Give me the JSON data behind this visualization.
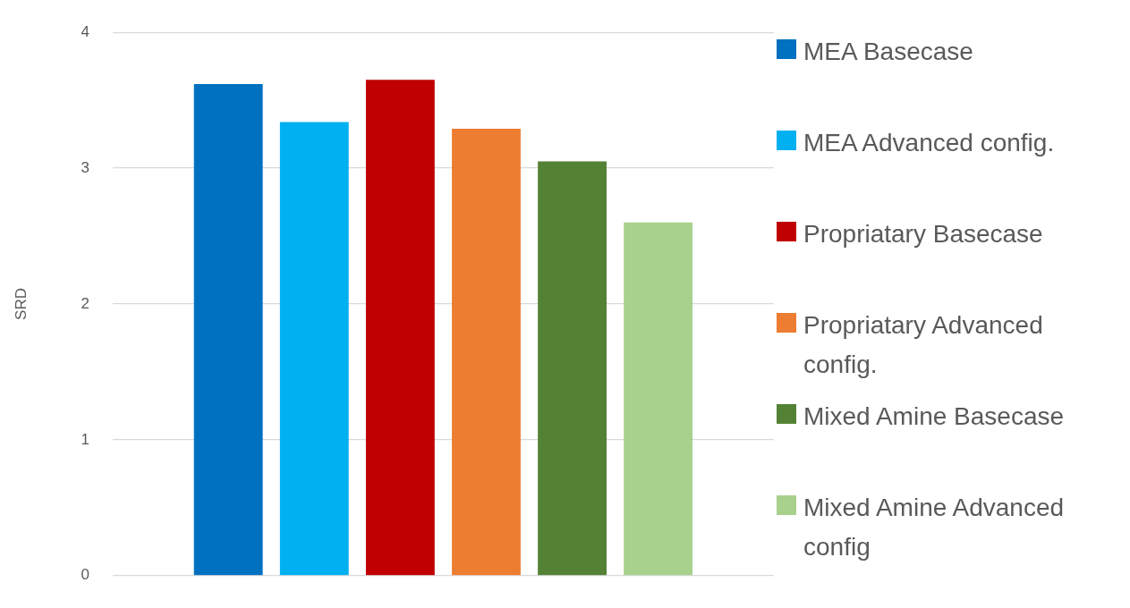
{
  "chart_data": {
    "type": "bar",
    "ylabel": "SRD",
    "categories": [
      null
    ],
    "series": [
      {
        "name": "MEA Basecase",
        "color": "#0070c0",
        "values": [
          3.62
        ]
      },
      {
        "name": "MEA Advanced config.",
        "color": "#00b0f0",
        "values": [
          3.34
        ]
      },
      {
        "name": "Propriatary Basecase",
        "color": "#c00000",
        "values": [
          3.65
        ]
      },
      {
        "name": "Propriatary Advanced config.",
        "color": "#ed7d31",
        "values": [
          3.29
        ]
      },
      {
        "name": "Mixed Amine Basecase",
        "color": "#548235",
        "values": [
          3.05
        ]
      },
      {
        "name": "Mixed Amine Advanced config",
        "color": "#a9d18e",
        "values": [
          2.6
        ]
      }
    ],
    "ylim": [
      0,
      4
    ],
    "yticks": [
      0,
      1,
      2,
      3,
      4
    ],
    "grid": "y",
    "legend": "right"
  }
}
